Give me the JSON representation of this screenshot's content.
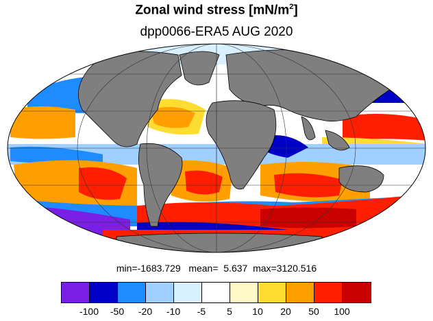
{
  "title": {
    "text": "Zonal wind stress [mN/m",
    "superscript": "2",
    "suffix": "]"
  },
  "subtitle": "dpp0066-ERA5  AUG 2020",
  "stats": "min=-1683.729   mean=  5.637  max=3120.516",
  "colorbar": {
    "colors": [
      "#7a1fe6",
      "#0000c8",
      "#1e8cff",
      "#a0d0ff",
      "#d8f0ff",
      "#ffffff",
      "#fffac8",
      "#ffdc32",
      "#ffa000",
      "#ff1e00",
      "#c80000"
    ],
    "tick_labels": [
      "-100",
      "-50",
      "-20",
      "-10",
      "-5",
      "5",
      "10",
      "20",
      "50",
      "100"
    ]
  },
  "map": {
    "projection": "Mollweide",
    "land_color": "#7f7f7f",
    "ocean_background": "#ffffff"
  }
}
